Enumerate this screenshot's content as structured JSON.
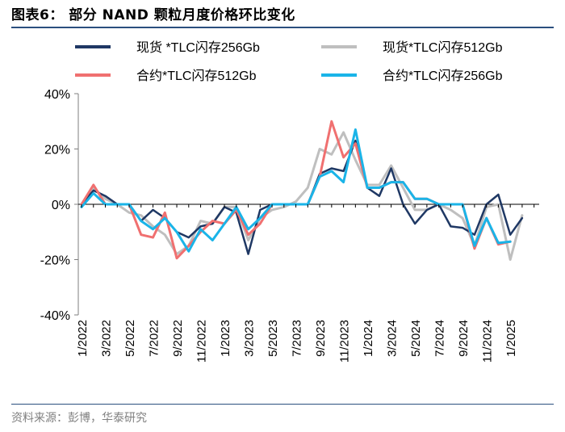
{
  "header": {
    "title": "图表6：  部分 NAND 颗粒月度价格环比变化"
  },
  "footer": {
    "source": "资料来源：彭博，华泰研究"
  },
  "colors": {
    "rule": "#2b4f7e",
    "axis": "#7f7f7f"
  },
  "chart_data": {
    "type": "line",
    "title": "部分 NAND 颗粒月度价格环比变化",
    "xlabel": "",
    "ylabel": "",
    "ylim": [
      -40,
      40
    ],
    "y_ticks": [
      -40,
      -20,
      0,
      20,
      40
    ],
    "y_tick_labels": [
      "-40%",
      "-20%",
      "0%",
      "20%",
      "40%"
    ],
    "x_tick_labels": [
      "1/2022",
      "3/2022",
      "5/2022",
      "7/2022",
      "9/2022",
      "11/2022",
      "1/2023",
      "3/2023",
      "5/2023",
      "7/2023",
      "9/2023",
      "11/2023",
      "1/2024",
      "3/2024",
      "5/2024",
      "7/2024",
      "9/2024",
      "11/2024",
      "1/2025"
    ],
    "x_months_start": "1/2022",
    "legend_position": "top",
    "series": [
      {
        "name": "现货 *TLC闪存256Gb",
        "color": "#1f3864",
        "width": 2.5,
        "values": [
          0,
          5,
          3,
          0,
          0,
          -6,
          -2,
          -5,
          -10,
          -12,
          -8,
          -7,
          -1,
          -3,
          -18,
          -2,
          0,
          0,
          0,
          0,
          11,
          13,
          12,
          23,
          6,
          3,
          13,
          0,
          -7,
          -2,
          0,
          -8,
          -8.5,
          -11,
          0,
          3.5,
          -11,
          -5
        ]
      },
      {
        "name": "现货*TLC闪存512Gb",
        "color": "#bfbfbf",
        "width": 3,
        "values": [
          0,
          6,
          2,
          0,
          -3,
          -4,
          -8,
          -11,
          -18,
          -15,
          -6,
          -7,
          -1,
          -1,
          -13,
          -5,
          -2,
          -1,
          1,
          6,
          20,
          18,
          26,
          16,
          7,
          7,
          14,
          6,
          -2,
          -2,
          0,
          -2,
          -5,
          -15,
          -1,
          0,
          -20,
          -4
        ]
      },
      {
        "name": "合约*TLC闪存512Gb",
        "color": "#f07070",
        "width": 3,
        "values": [
          0,
          7,
          0,
          0,
          0,
          -11,
          -12,
          -3,
          -19.5,
          -15,
          -10,
          -6,
          -7,
          -2,
          -11,
          -7,
          0,
          0,
          0,
          0,
          10,
          30,
          17,
          22,
          6,
          6,
          8,
          8,
          2,
          2,
          0,
          0,
          0,
          -16,
          -5,
          -14.5,
          -13.5
        ]
      },
      {
        "name": "合约*TLC闪存256Gb",
        "color": "#1ab4e8",
        "width": 3,
        "values": [
          -1,
          4,
          0,
          0,
          0,
          -6,
          -9,
          -5,
          -10,
          -17,
          -9,
          -13,
          -7,
          -1,
          -9,
          -5,
          0,
          0,
          0,
          0,
          10,
          12,
          8,
          27,
          6,
          6,
          8,
          8,
          2,
          2,
          0,
          0,
          0,
          -15,
          -5,
          -14,
          -13.5
        ]
      }
    ]
  }
}
